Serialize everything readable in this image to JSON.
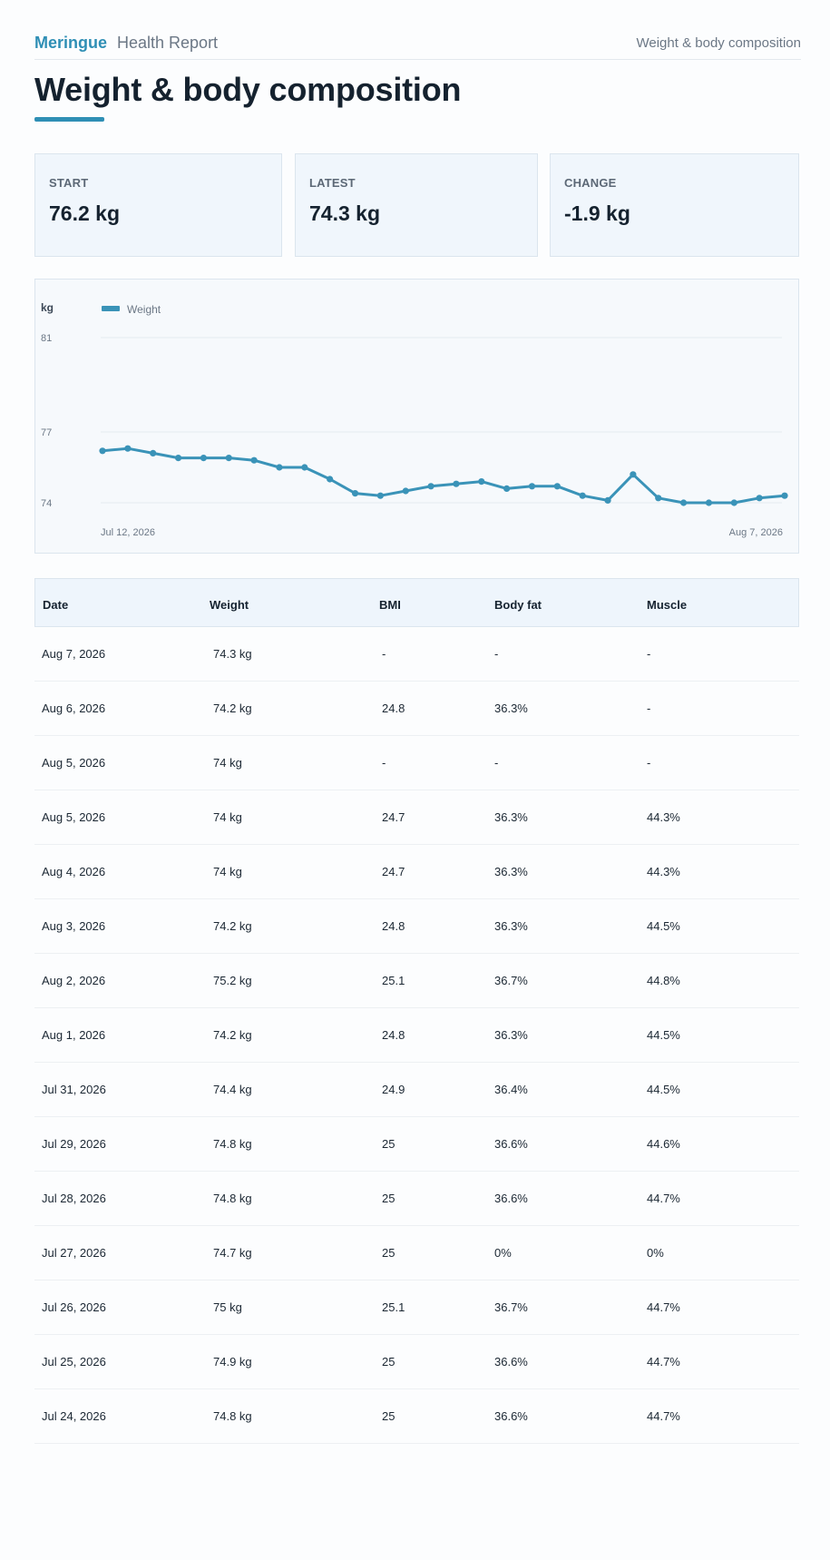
{
  "header": {
    "brand": "Meringue",
    "report": "Health Report",
    "section": "Weight & body composition"
  },
  "page_title": "Weight & body composition",
  "cards": [
    {
      "label": "START",
      "value": "76.2 kg"
    },
    {
      "label": "LATEST",
      "value": "74.3 kg"
    },
    {
      "label": "CHANGE",
      "value": "-1.9 kg"
    }
  ],
  "chart_data": {
    "type": "line",
    "unit_label": "kg",
    "y_ticks": [
      81,
      77,
      74
    ],
    "ylim": [
      74,
      81
    ],
    "x_start_label": "Jul 12, 2026",
    "x_end_label": "Aug 7, 2026",
    "grid": true,
    "legend_position": "top-left",
    "color": "#3a93b8",
    "series": [
      {
        "name": "Weight",
        "values": [
          76.2,
          76.3,
          76.1,
          75.9,
          75.9,
          75.9,
          75.8,
          75.5,
          75.5,
          75.0,
          74.4,
          74.3,
          74.5,
          74.7,
          74.8,
          74.9,
          74.6,
          74.7,
          74.7,
          74.3,
          74.1,
          75.2,
          74.2,
          74.0,
          74.0,
          74.0,
          74.2,
          74.3
        ]
      }
    ]
  },
  "table": {
    "columns": [
      "Date",
      "Weight",
      "BMI",
      "Body fat",
      "Muscle"
    ],
    "rows": [
      [
        "Aug 7, 2026",
        "74.3 kg",
        "-",
        "-",
        "-"
      ],
      [
        "Aug 6, 2026",
        "74.2 kg",
        "24.8",
        "36.3%",
        "-"
      ],
      [
        "Aug 5, 2026",
        "74 kg",
        "-",
        "-",
        "-"
      ],
      [
        "Aug 5, 2026",
        "74 kg",
        "24.7",
        "36.3%",
        "44.3%"
      ],
      [
        "Aug 4, 2026",
        "74 kg",
        "24.7",
        "36.3%",
        "44.3%"
      ],
      [
        "Aug 3, 2026",
        "74.2 kg",
        "24.8",
        "36.3%",
        "44.5%"
      ],
      [
        "Aug 2, 2026",
        "75.2 kg",
        "25.1",
        "36.7%",
        "44.8%"
      ],
      [
        "Aug 1, 2026",
        "74.2 kg",
        "24.8",
        "36.3%",
        "44.5%"
      ],
      [
        "Jul 31, 2026",
        "74.4 kg",
        "24.9",
        "36.4%",
        "44.5%"
      ],
      [
        "Jul 29, 2026",
        "74.8 kg",
        "25",
        "36.6%",
        "44.6%"
      ],
      [
        "Jul 28, 2026",
        "74.8 kg",
        "25",
        "36.6%",
        "44.7%"
      ],
      [
        "Jul 27, 2026",
        "74.7 kg",
        "25",
        "0%",
        "0%"
      ],
      [
        "Jul 26, 2026",
        "75 kg",
        "25.1",
        "36.7%",
        "44.7%"
      ],
      [
        "Jul 25, 2026",
        "74.9 kg",
        "25",
        "36.6%",
        "44.7%"
      ],
      [
        "Jul 24, 2026",
        "74.8 kg",
        "25",
        "36.6%",
        "44.7%"
      ]
    ]
  }
}
